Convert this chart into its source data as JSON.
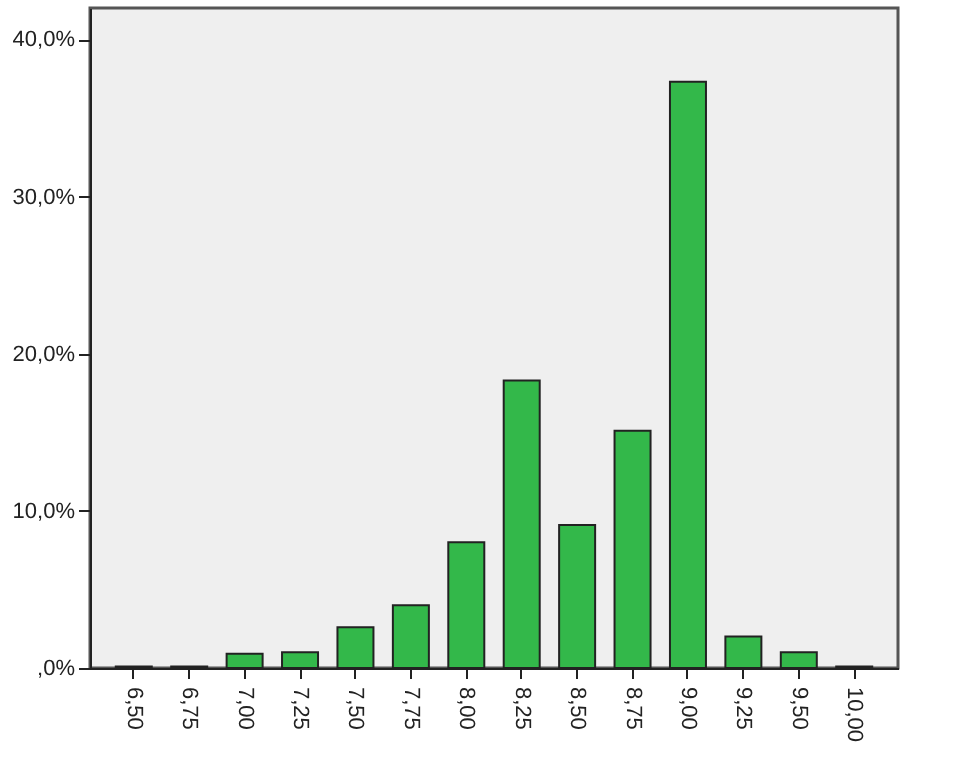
{
  "chart_data": {
    "type": "bar",
    "categories": [
      "6,50",
      "6,75",
      "7,00",
      "7,25",
      "7,50",
      "7,75",
      "8,00",
      "8,25",
      "8,50",
      "8,75",
      "9,00",
      "9,25",
      "9,50",
      "10,00"
    ],
    "values": [
      0.1,
      0.1,
      0.9,
      1.0,
      2.6,
      4.0,
      8.0,
      18.3,
      9.1,
      15.1,
      37.3,
      2.0,
      1.0,
      0.1
    ],
    "color": "#33b84a",
    "ylim": [
      0,
      42
    ],
    "yticks": [
      {
        "value": 0,
        "label": ",0%"
      },
      {
        "value": 10,
        "label": "10,0%"
      },
      {
        "value": 20,
        "label": "20,0%"
      },
      {
        "value": 30,
        "label": "30,0%"
      },
      {
        "value": 40,
        "label": "40,0%"
      }
    ],
    "grid": false
  }
}
